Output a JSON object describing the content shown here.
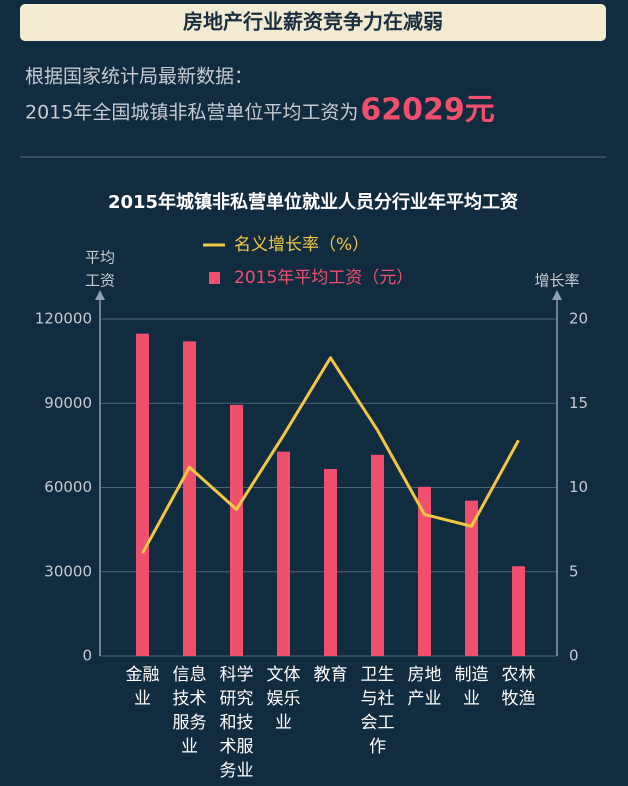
{
  "header": {
    "title": "房地产行业薪资竞争力在减弱"
  },
  "intro": {
    "line1": "根据国家统计局最新数据：",
    "line2": "2015年全国城镇非私营单位平均工资为",
    "highlight": "62029元"
  },
  "chart_data": {
    "type": "bar",
    "title": "2015年城镇非私营单位就业人员分行业年平均工资",
    "y_label": [
      "平均",
      "工资"
    ],
    "y2_label": "增长率",
    "categories": [
      "金融业",
      "信息技术服务业",
      "科学研究和技术服务业",
      "文体娱乐业",
      "教育",
      "卫生与社会工作",
      "房地产业",
      "制造业",
      "农林牧渔"
    ],
    "series": [
      {
        "name": "名义增长率（%）",
        "type": "line",
        "axis": "y2",
        "color": "#f2c744",
        "values": [
          6.1,
          11.2,
          8.7,
          13.1,
          17.7,
          13.4,
          8.4,
          7.7,
          12.8
        ]
      },
      {
        "name": "2015年平均工资（元）",
        "type": "bar",
        "color": "#f0506e",
        "values": [
          114777,
          112042,
          89410,
          72764,
          66592,
          71624,
          60244,
          55324,
          31947
        ]
      }
    ],
    "ylim": [
      0,
      120000
    ],
    "yticks": [
      0,
      30000,
      60000,
      90000,
      120000
    ],
    "y2lim": [
      0,
      20
    ],
    "y2ticks": [
      0,
      5,
      10,
      15,
      20
    ],
    "grid": true
  }
}
